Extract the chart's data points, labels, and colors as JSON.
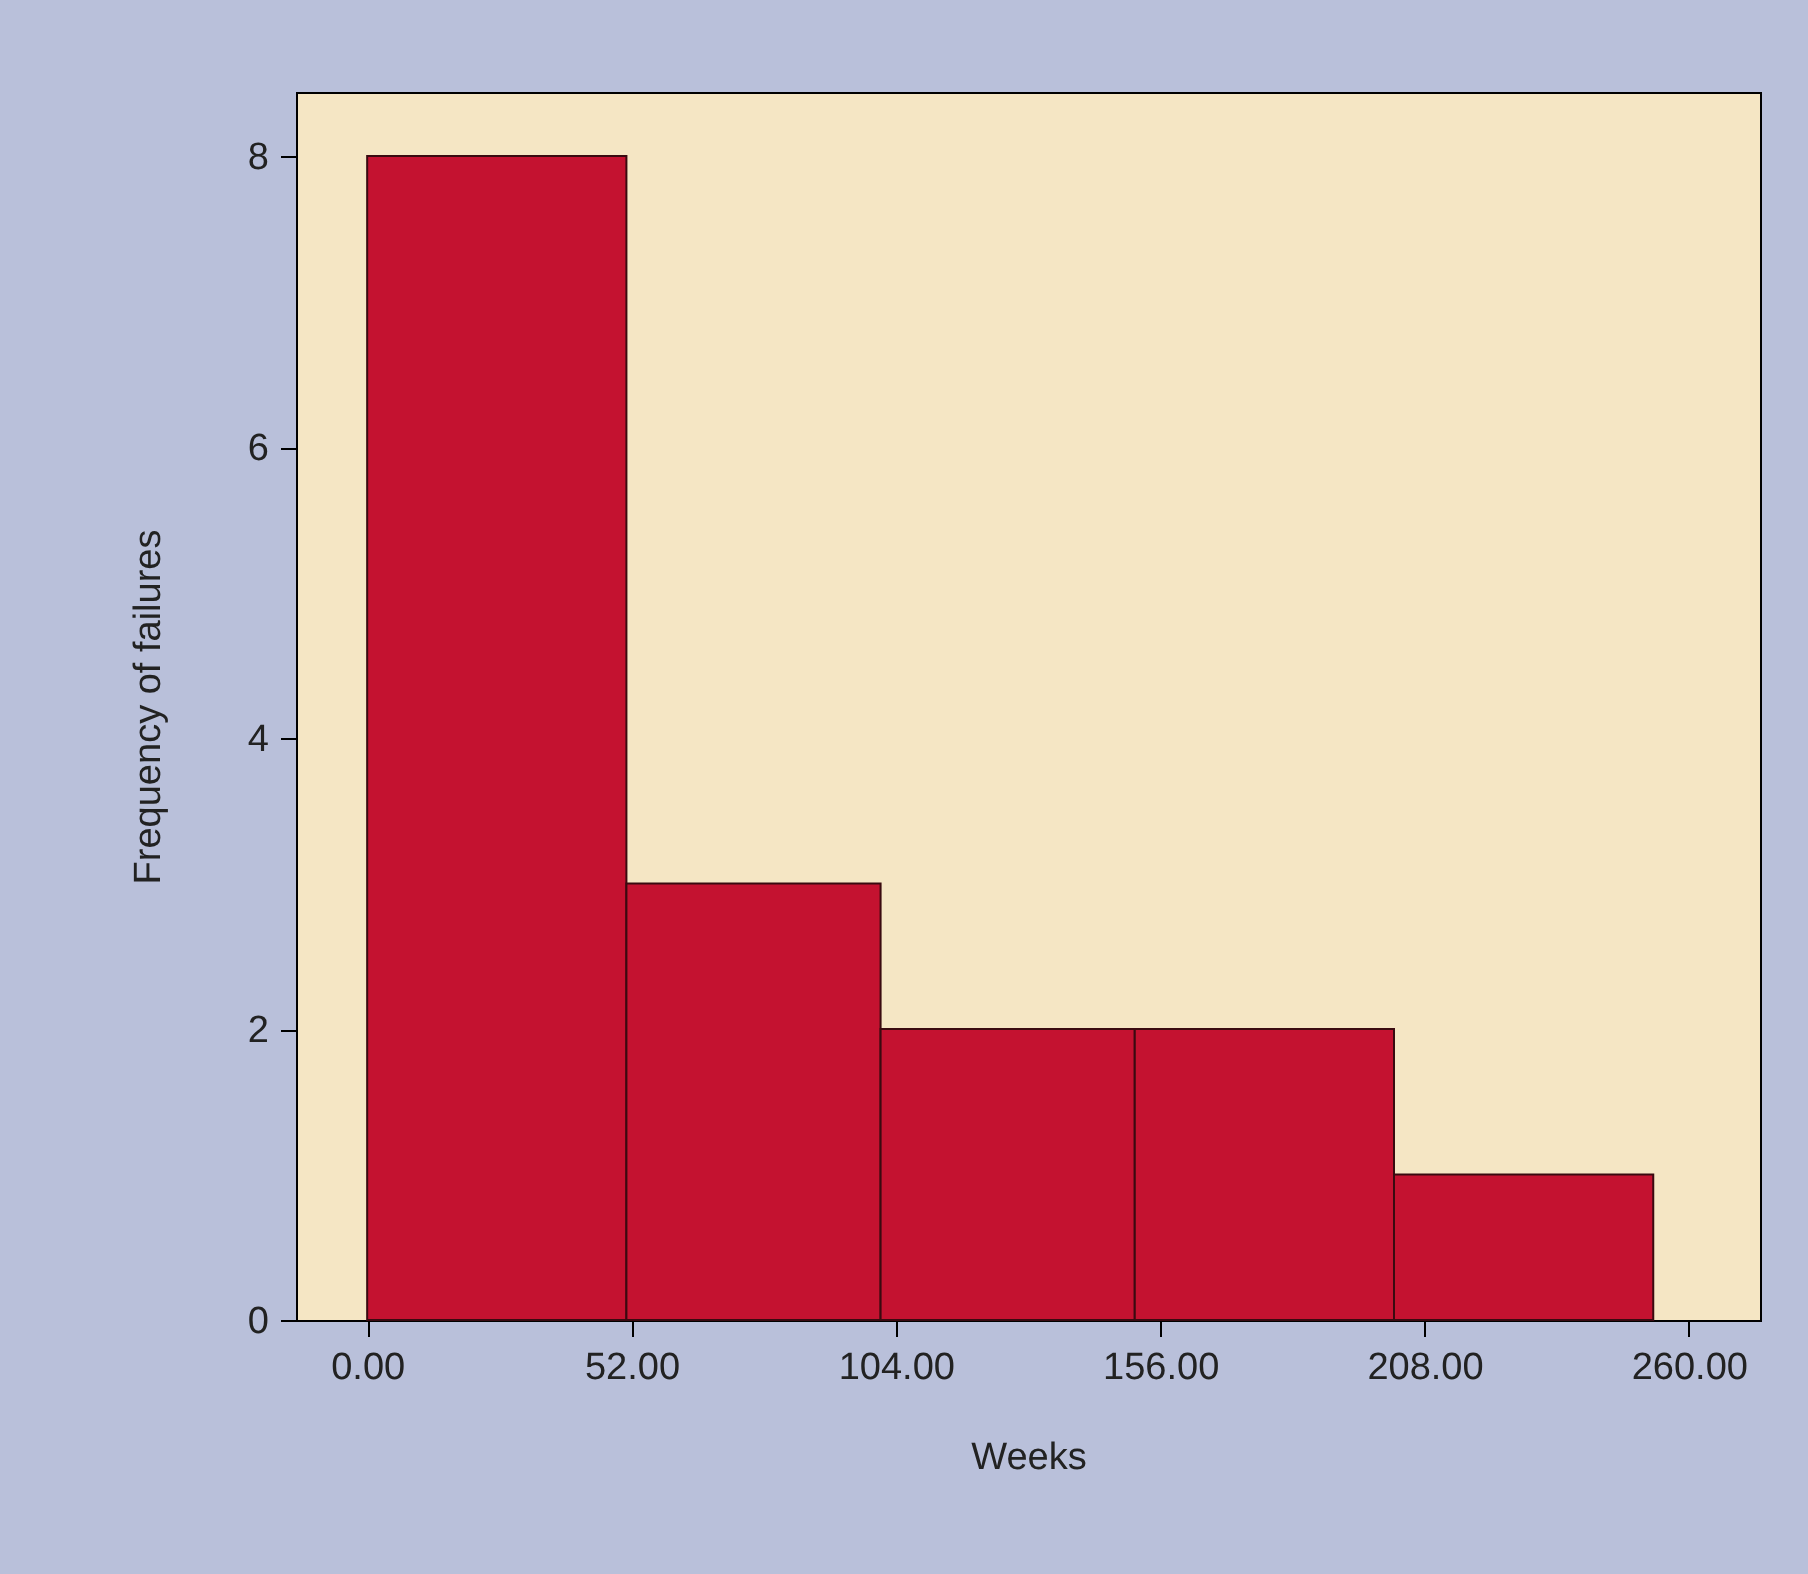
{
  "chart_data": {
    "type": "histogram",
    "xlabel": "Weeks",
    "ylabel": "Frequency of failures",
    "bins": [
      0,
      51,
      101,
      151,
      202,
      253
    ],
    "values": [
      8,
      3,
      2,
      2,
      1
    ],
    "color": "#c41230",
    "xlim": [
      -14,
      274
    ],
    "ylim": [
      0,
      8.44
    ],
    "xticks": [
      {
        "value": 0,
        "label": "0.00"
      },
      {
        "value": 52,
        "label": "52.00"
      },
      {
        "value": 104,
        "label": "104.00"
      },
      {
        "value": 156,
        "label": "156.00"
      },
      {
        "value": 208,
        "label": "208.00"
      },
      {
        "value": 260,
        "label": "260.00"
      }
    ],
    "yticks": [
      0,
      2,
      4,
      6,
      8
    ],
    "grid": false
  }
}
